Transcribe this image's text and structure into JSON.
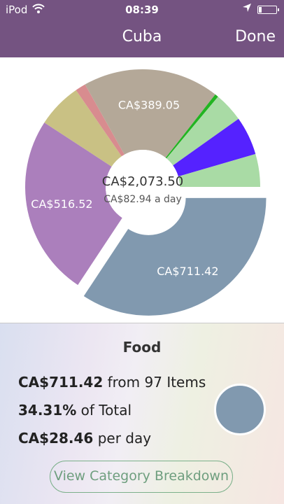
{
  "status_bar": {
    "carrier": "iPod",
    "time": "08:39"
  },
  "nav": {
    "title": "Cuba",
    "done_label": "Done"
  },
  "chart_data": {
    "type": "pie",
    "style": "donut",
    "center_total": "CA$2,073.50",
    "center_daily": "CA$82.94 a day",
    "slices": [
      {
        "label": "CA$516.52",
        "value": 516.52,
        "color": "#ab7fbc"
      },
      {
        "label": "",
        "value": 128.0,
        "color": "#c9c184"
      },
      {
        "label": "",
        "value": 30.0,
        "color": "#d88c8f"
      },
      {
        "label": "CA$389.05",
        "value": 389.05,
        "color": "#b4a898"
      },
      {
        "label": "",
        "value": 10.0,
        "color": "#22b422"
      },
      {
        "label": "",
        "value": 85.0,
        "color": "#a9dba5"
      },
      {
        "label": "",
        "value": 110.0,
        "color": "#5522ff"
      },
      {
        "label": "",
        "value": 93.51,
        "color": "#a9dba5"
      },
      {
        "label": "CA$711.42",
        "value": 711.42,
        "color": "#8199af",
        "selected": true
      }
    ]
  },
  "selected": {
    "title": "Food",
    "amount": "CA$711.42",
    "amount_suffix": " from 97 Items",
    "percent": "34.31%",
    "percent_suffix": " of Total",
    "per_day": "CA$28.46",
    "per_day_suffix": " per day",
    "color": "#8199af"
  },
  "button": {
    "label": "View Category Breakdown"
  }
}
